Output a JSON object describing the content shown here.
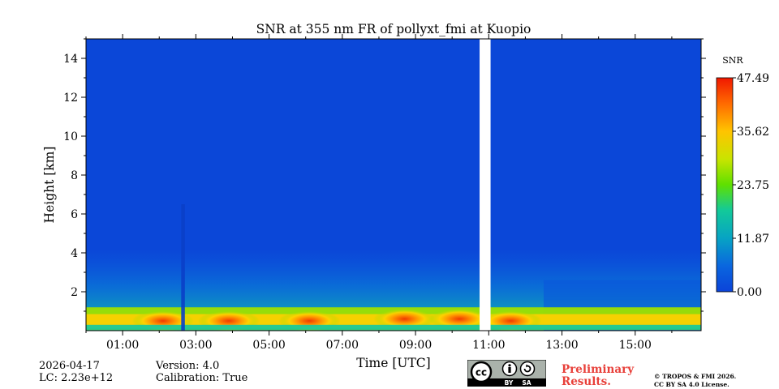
{
  "chart_data": {
    "type": "heatmap",
    "title": "SNR at 355 nm FR of pollyxt_fmi at Kuopio",
    "xlabel": "Time [UTC]",
    "ylabel": "Height [km]",
    "xlim_hours": [
      0,
      16.8
    ],
    "ylim_km": [
      0,
      15
    ],
    "x_tick_labels": [
      "01:00",
      "03:00",
      "05:00",
      "07:00",
      "09:00",
      "11:00",
      "13:00",
      "15:00"
    ],
    "x_tick_hours": [
      1,
      3,
      5,
      7,
      9,
      11,
      13,
      15
    ],
    "y_tick_labels": [
      "2",
      "4",
      "6",
      "8",
      "10",
      "12",
      "14"
    ],
    "y_tick_values": [
      2,
      4,
      6,
      8,
      10,
      12,
      14
    ],
    "colorbar": {
      "label": "SNR",
      "min": 0.0,
      "max": 47.49,
      "tick_labels": [
        "0.00",
        "11.87",
        "23.75",
        "35.62",
        "47.49"
      ],
      "tick_values": [
        0.0,
        11.87,
        23.75,
        35.62,
        47.49
      ]
    },
    "data_gap_hours": [
      10.75,
      11.05
    ],
    "low_signal_column_hours": [
      2.6,
      2.7
    ],
    "boundary_layer_snr_peaks": [
      {
        "time_h": 2.1,
        "height_km": 0.5,
        "snr": 40
      },
      {
        "time_h": 3.9,
        "height_km": 0.5,
        "snr": 41
      },
      {
        "time_h": 6.1,
        "height_km": 0.5,
        "snr": 40
      },
      {
        "time_h": 8.7,
        "height_km": 0.6,
        "snr": 44
      },
      {
        "time_h": 10.2,
        "height_km": 0.6,
        "snr": 42
      },
      {
        "time_h": 11.6,
        "height_km": 0.5,
        "snr": 38
      }
    ]
  },
  "footer": {
    "date": "2026-04-17",
    "lc": "LC: 2.23e+12",
    "version": "Version: 4.0",
    "calibration": "Calibration: True",
    "preliminary_line1": "Preliminary",
    "preliminary_line2": "Results.",
    "copyright_line1": "© TROPOS & FMI 2026.",
    "copyright_line2": "CC BY SA 4.0 License.",
    "license_cc": "cc",
    "license_by": "BY",
    "license_sa": "SA"
  }
}
